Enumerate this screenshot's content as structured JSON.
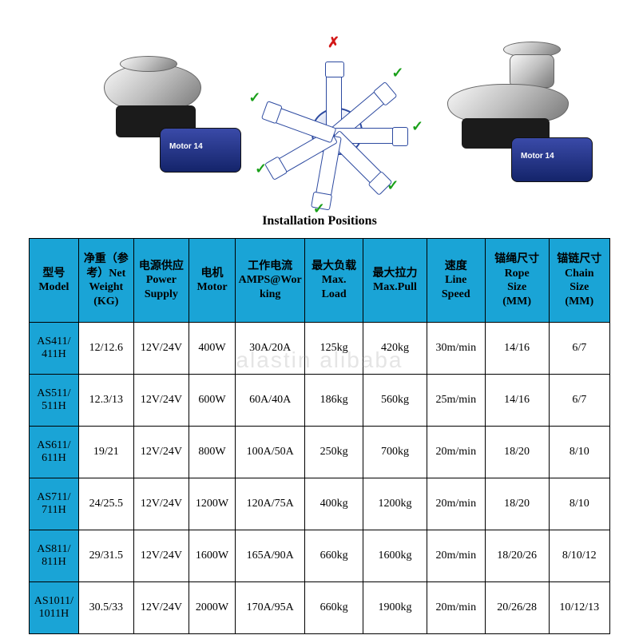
{
  "caption": "Installation Positions",
  "motor_label": "Motor 14",
  "watermark": "alastin   alibaba",
  "diagram": {
    "arms_deg": [
      -90,
      -40,
      0,
      45,
      100,
      150,
      200
    ],
    "marks": [
      "no",
      "ok",
      "ok",
      "ok",
      "ok",
      "ok",
      "ok"
    ],
    "line_color": "#2d4aa0",
    "ok_color": "#1aa01a",
    "no_color": "#d31818"
  },
  "table": {
    "header_bg": "#1aa4d6",
    "border_color": "#000000",
    "cell_bg": "#ffffff",
    "header_fontsize": 14,
    "cell_fontsize": 14,
    "columns": [
      "型号\nModel",
      "净重（参考）Net Weight (KG)",
      "电源供应 Power Supply",
      "电机 Motor",
      "工作电流 AMPS@Working",
      "最大负载 Max. Load",
      "最大拉力 Max.Pull",
      "速度 Line Speed",
      "锚绳尺寸 Rope Size (MM)",
      "锚链尺寸 Chain Size (MM)"
    ],
    "rows": [
      [
        "AS411/411H",
        "12/12.6",
        "12V/24V",
        "400W",
        "30A/20A",
        "125kg",
        "420kg",
        "30m/min",
        "14/16",
        "6/7"
      ],
      [
        "AS511/511H",
        "12.3/13",
        "12V/24V",
        "600W",
        "60A/40A",
        "186kg",
        "560kg",
        "25m/min",
        "14/16",
        "6/7"
      ],
      [
        "AS611/611H",
        "19/21",
        "12V/24V",
        "800W",
        "100A/50A",
        "250kg",
        "700kg",
        "20m/min",
        "18/20",
        "8/10"
      ],
      [
        "AS711/711H",
        "24/25.5",
        "12V/24V",
        "1200W",
        "120A/75A",
        "400kg",
        "1200kg",
        "20m/min",
        "18/20",
        "8/10"
      ],
      [
        "AS811/811H",
        "29/31.5",
        "12V/24V",
        "1600W",
        "165A/90A",
        "660kg",
        "1600kg",
        "20m/min",
        "18/20/26",
        "8/10/12"
      ],
      [
        "AS1011/1011H",
        "30.5/33",
        "12V/24V",
        "2000W",
        "170A/95A",
        "660kg",
        "1900kg",
        "20m/min",
        "20/26/28",
        "10/12/13"
      ]
    ]
  }
}
